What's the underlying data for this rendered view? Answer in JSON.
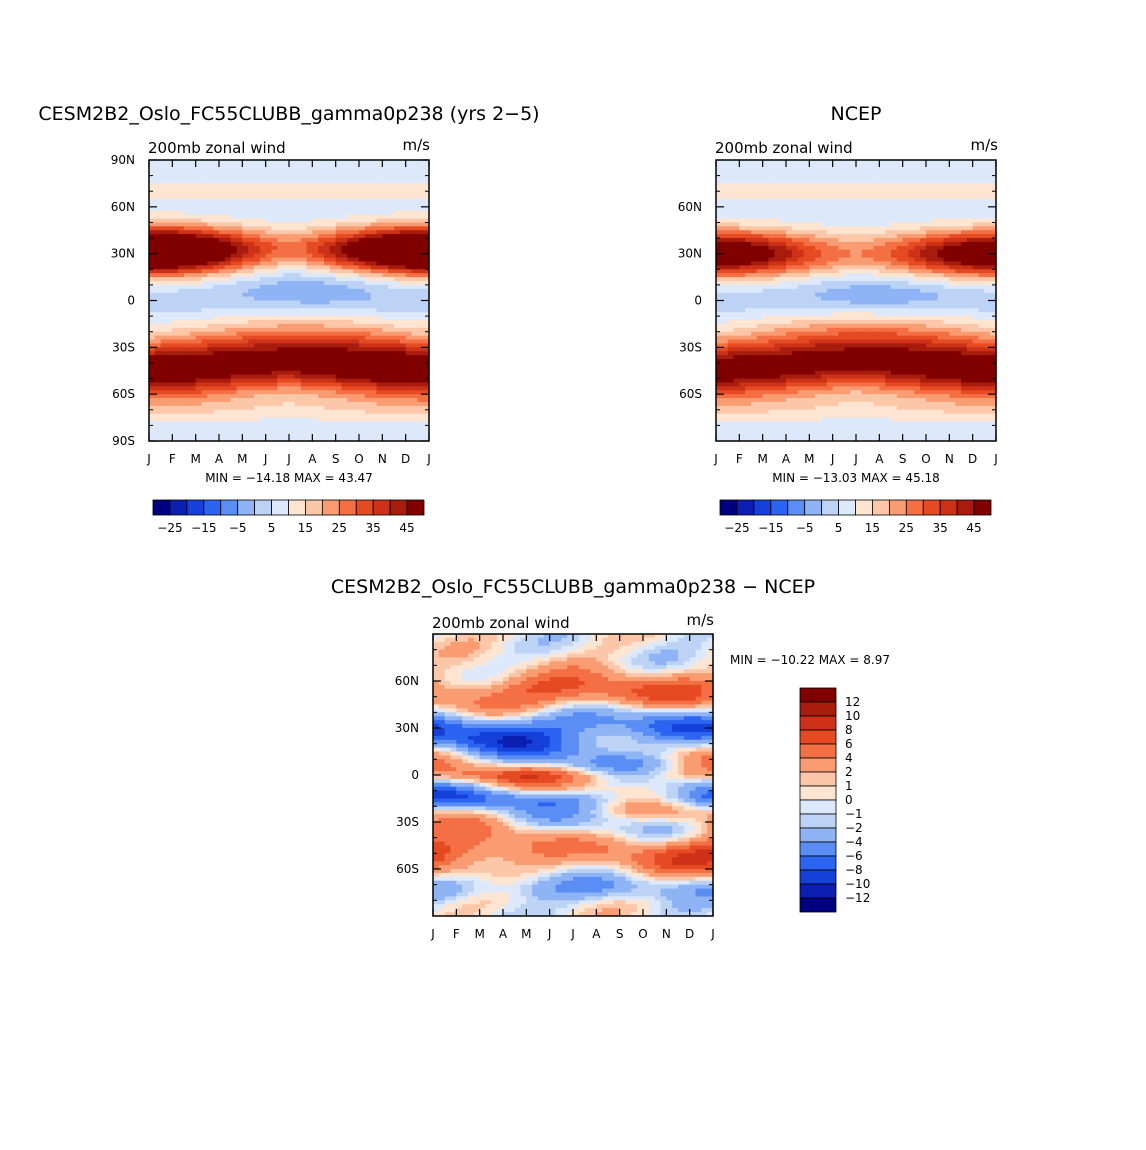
{
  "chart_data": [
    {
      "type": "heatmap",
      "title": "CESM2B2_Oslo_FC55CLUBB_gamma0p238 (yrs 2−5)",
      "subtitle_left": "200mb zonal wind",
      "units": "m/s",
      "xlabel": "",
      "ylabel": "",
      "x_tick_labels": [
        "J",
        "F",
        "M",
        "A",
        "M",
        "J",
        "J",
        "A",
        "S",
        "O",
        "N",
        "D",
        "J"
      ],
      "y_tick_labels": [
        "90N",
        "60N",
        "30N",
        "0",
        "30S",
        "60S",
        "90S"
      ],
      "ylim": [
        -90,
        90
      ],
      "stats_text": "MIN = −14.18 MAX =   43.47",
      "min": -14.18,
      "max": 43.47,
      "colorbar_labels": [
        "−25",
        "−15",
        "−5",
        "5",
        "15",
        "25",
        "35",
        "45"
      ],
      "features": [
        {
          "lat": 32,
          "lat_width": 11,
          "month_center": 0,
          "month_width": 3,
          "value": 43,
          "periodic": true
        },
        {
          "lat": 32,
          "lat_width": 10,
          "month_center": 12,
          "month_width": 3,
          "value": 40,
          "periodic": true
        },
        {
          "lat": -30,
          "lat_width": 14,
          "month_center": 6.5,
          "month_width": 4,
          "value": 42,
          "periodic": false
        },
        {
          "lat": -50,
          "lat_width": 12,
          "month_center": 0,
          "month_width": 3,
          "value": 40,
          "periodic": true
        },
        {
          "lat": 10,
          "lat_width": 10,
          "month_center": 7,
          "month_width": 2.5,
          "value": -14,
          "periodic": false
        }
      ]
    },
    {
      "type": "heatmap",
      "title": "NCEP",
      "subtitle_left": "200mb zonal wind",
      "units": "m/s",
      "x_tick_labels": [
        "J",
        "F",
        "M",
        "A",
        "M",
        "J",
        "J",
        "A",
        "S",
        "O",
        "N",
        "D",
        "J"
      ],
      "y_tick_labels": [
        "60N",
        "30N",
        "0",
        "30S",
        "60S"
      ],
      "ylim": [
        -90,
        90
      ],
      "stats_text": "MIN = −13.03 MAX =   45.18",
      "min": -13.03,
      "max": 45.18,
      "colorbar_labels": [
        "−25",
        "−15",
        "−5",
        "5",
        "15",
        "25",
        "35",
        "45"
      ],
      "features": [
        {
          "lat": 30,
          "lat_width": 11,
          "month_center": 0,
          "month_width": 3,
          "value": 45,
          "periodic": true
        },
        {
          "lat": -28,
          "lat_width": 14,
          "month_center": 6.5,
          "month_width": 4,
          "value": 43,
          "periodic": false
        },
        {
          "lat": -50,
          "lat_width": 12,
          "month_center": 0,
          "month_width": 3,
          "value": 36,
          "periodic": true
        },
        {
          "lat": 5,
          "lat_width": 9,
          "month_center": 7,
          "month_width": 2.5,
          "value": -13,
          "periodic": false
        }
      ]
    },
    {
      "type": "heatmap",
      "title": "CESM2B2_Oslo_FC55CLUBB_gamma0p238 − NCEP",
      "subtitle_left": "200mb zonal wind",
      "units": "m/s",
      "x_tick_labels": [
        "J",
        "F",
        "M",
        "A",
        "M",
        "J",
        "J",
        "A",
        "S",
        "O",
        "N",
        "D",
        "J"
      ],
      "y_tick_labels": [
        "60N",
        "30N",
        "0",
        "30S",
        "60S"
      ],
      "ylim": [
        -90,
        90
      ],
      "stats_text": "MIN = −10.22 MAX =    8.97",
      "min": -10.22,
      "max": 8.97,
      "colorbar_labels": [
        "12",
        "10",
        "8",
        "6",
        "4",
        "2",
        "1",
        "0",
        "−1",
        "−2",
        "−4",
        "−6",
        "−8",
        "−10",
        "−12"
      ],
      "features": [
        {
          "lat": 52,
          "lat_width": 9,
          "month_center": 6,
          "month_width": 5,
          "value": 7,
          "periodic": false
        },
        {
          "lat": 28,
          "lat_width": 10,
          "month_center": 5,
          "month_width": 6,
          "value": -8,
          "periodic": false
        },
        {
          "lat": -50,
          "lat_width": 9,
          "month_center": 0,
          "month_width": 3,
          "value": 8,
          "periodic": true
        }
      ]
    }
  ],
  "colors": {
    "abs_scale": [
      "#000080",
      "#0d1fb0",
      "#1540d9",
      "#2a64f0",
      "#5a8ef5",
      "#8fb4f5",
      "#bcd3f6",
      "#dde9fa",
      "#fde5d2",
      "#fcc7a8",
      "#fa9c72",
      "#f46f44",
      "#e54a22",
      "#cd3117",
      "#a81c0e",
      "#800000"
    ],
    "diff_scale": [
      "#800000",
      "#a81c0e",
      "#cd3117",
      "#e54a22",
      "#f46f44",
      "#fa9c72",
      "#fcc7a8",
      "#fde5d2",
      "#dde9fa",
      "#bcd3f6",
      "#8fb4f5",
      "#5a8ef5",
      "#2a64f0",
      "#1540d9",
      "#0d1fb0",
      "#000080"
    ]
  }
}
